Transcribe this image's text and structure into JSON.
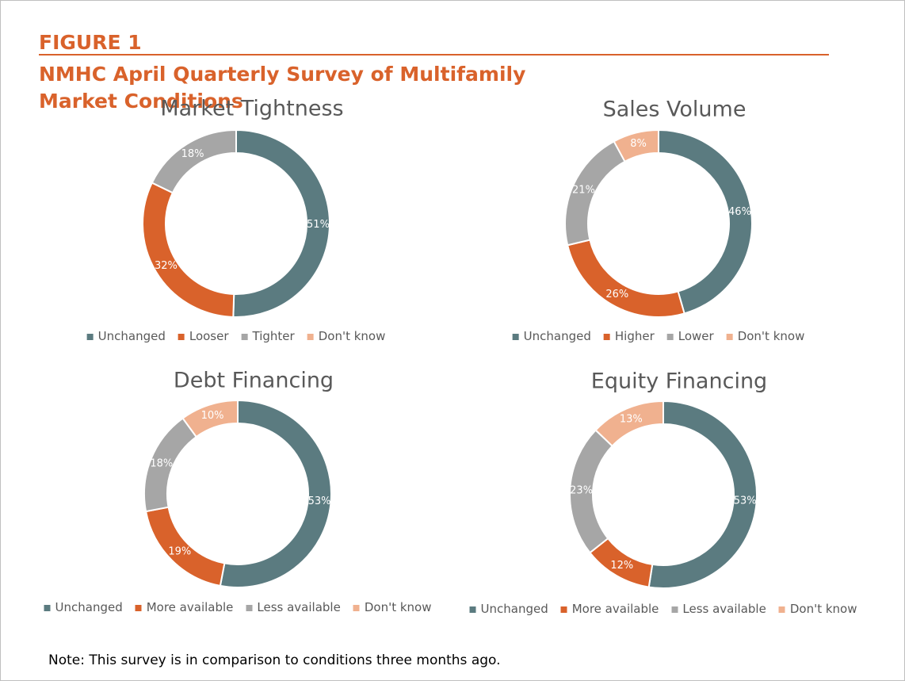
{
  "figure_label": "FIGURE 1",
  "title": "NMHC April Quarterly Survey of Multifamily Market Conditions",
  "note": "Note: This survey is in comparison to conditions three months ago.",
  "chart_data": [
    {
      "type": "donut",
      "title": "Market Tightness",
      "categories": [
        "Unchanged",
        "Looser",
        "Tighter",
        "Don't know"
      ],
      "values": [
        51,
        32,
        18,
        0
      ],
      "value_labels": [
        "51%",
        "32%",
        "18%",
        null
      ],
      "colors": [
        "#5b7b80",
        "#d9622b",
        "#a6a6a6",
        "#f0b18f"
      ]
    },
    {
      "type": "donut",
      "title": "Sales Volume",
      "categories": [
        "Unchanged",
        "Higher",
        "Lower",
        "Don't know"
      ],
      "values": [
        46,
        26,
        21,
        8
      ],
      "value_labels": [
        "46%",
        "26%",
        "21%",
        "8%"
      ],
      "colors": [
        "#5b7b80",
        "#d9622b",
        "#a6a6a6",
        "#f0b18f"
      ]
    },
    {
      "type": "donut",
      "title": "Debt Financing",
      "categories": [
        "Unchanged",
        "More available",
        "Less available",
        "Don't know"
      ],
      "values": [
        53,
        19,
        18,
        10
      ],
      "value_labels": [
        "53%",
        "19%",
        "18%",
        "10%"
      ],
      "colors": [
        "#5b7b80",
        "#d9622b",
        "#a6a6a6",
        "#f0b18f"
      ]
    },
    {
      "type": "donut",
      "title": "Equity Financing",
      "categories": [
        "Unchanged",
        "More available",
        "Less available",
        "Don't know"
      ],
      "values": [
        53,
        12,
        23,
        13
      ],
      "value_labels": [
        "53%",
        "12%",
        "23%",
        "13%"
      ],
      "colors": [
        "#5b7b80",
        "#d9622b",
        "#a6a6a6",
        "#f0b18f"
      ]
    }
  ]
}
